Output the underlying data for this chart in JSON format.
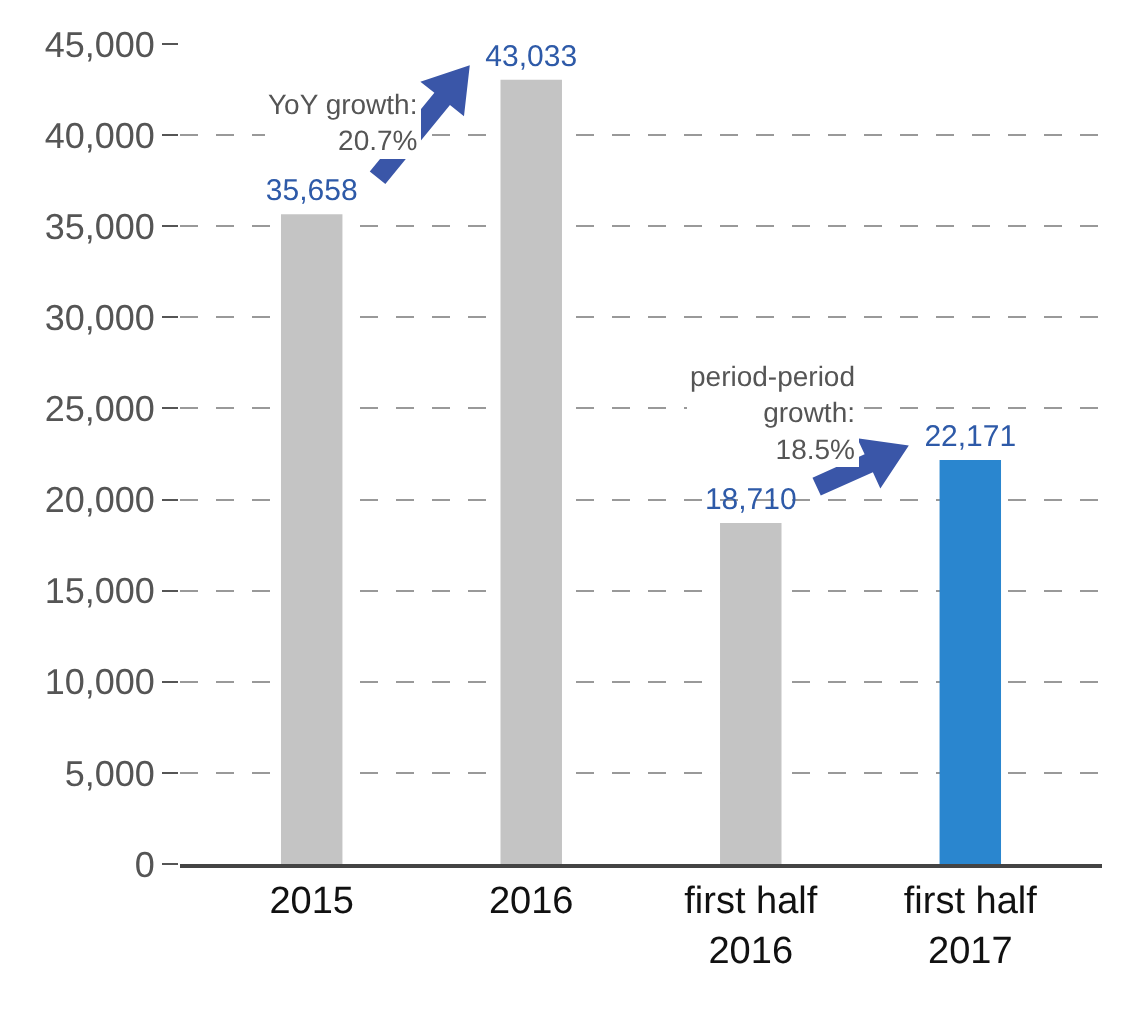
{
  "chart_data": {
    "type": "bar",
    "categories": [
      "2015",
      "2016",
      "first half\n2016",
      "first half\n2017"
    ],
    "values": [
      35658,
      43033,
      18710,
      22171
    ],
    "colors": [
      "#c4c4c4",
      "#c4c4c4",
      "#c4c4c4",
      "#2a86cf"
    ],
    "ylim": [
      0,
      45000
    ],
    "yticks": [
      0,
      {
        "value": 5000,
        "label": "5,000"
      },
      {
        "value": 10000,
        "label": "10,000"
      },
      {
        "value": 15000,
        "label": "15,000"
      },
      {
        "value": 20000,
        "label": "20,000"
      },
      {
        "value": 25000,
        "label": "25,000"
      },
      {
        "value": 30000,
        "label": "30,000"
      },
      {
        "value": 35000,
        "label": "35,000"
      },
      {
        "value": 40000,
        "label": "40,000"
      },
      {
        "value": 45000,
        "label": "45,000"
      }
    ],
    "grid": "y",
    "value_labels": [
      "35,658",
      "43,033",
      "18,710",
      "22,171"
    ],
    "annotations": [
      "YoY growth:\n20.7%",
      "period-period\ngrowth:\n18.5%"
    ]
  }
}
